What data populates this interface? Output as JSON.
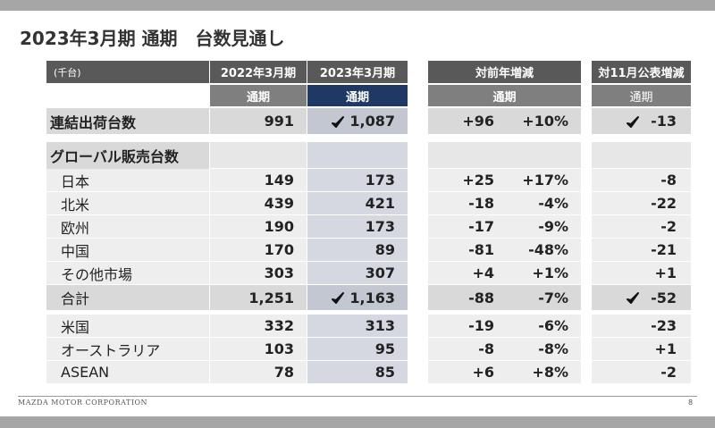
{
  "title": "2023年3月期 通期　台数見通し",
  "table": {
    "header": {
      "unit": "(千台)",
      "col_2022": "2022年3月期",
      "col_2023": "2023年3月期",
      "col_diff": "対前年増減",
      "col_nov": "対11月公表増減"
    },
    "subheader": {
      "col_2022": "通期",
      "col_2023": "通期",
      "col_diff": "通期",
      "col_nov": "通期"
    },
    "section_header": "グローバル販売台数",
    "rows": [
      {
        "label": "連結出荷台数",
        "v2022": "991",
        "v2023": "1,087",
        "diff": "+96",
        "pct": "+10%",
        "diff_nov": "-13",
        "checked": true
      },
      {
        "label": "日本",
        "v2022": "149",
        "v2023": "173",
        "diff": "+25",
        "pct": "+17%",
        "diff_nov": "-8"
      },
      {
        "label": "北米",
        "v2022": "439",
        "v2023": "421",
        "diff": "-18",
        "pct": "-4%",
        "diff_nov": "-22"
      },
      {
        "label": "欧州",
        "v2022": "190",
        "v2023": "173",
        "diff": "-17",
        "pct": "-9%",
        "diff_nov": "-2"
      },
      {
        "label": "中国",
        "v2022": "170",
        "v2023": "89",
        "diff": "-81",
        "pct": "-48%",
        "diff_nov": "-21"
      },
      {
        "label": "その他市場",
        "v2022": "303",
        "v2023": "307",
        "diff": "+4",
        "pct": "+1%",
        "diff_nov": "+1"
      },
      {
        "label": "合計",
        "v2022": "1,251",
        "v2023": "1,163",
        "diff": "-88",
        "pct": "-7%",
        "diff_nov": "-52",
        "checked": true
      },
      {
        "label": "米国",
        "v2022": "332",
        "v2023": "313",
        "diff": "-19",
        "pct": "-6%",
        "diff_nov": "-23"
      },
      {
        "label": "オーストラリア",
        "v2022": "103",
        "v2023": "95",
        "diff": "-8",
        "pct": "-8%",
        "diff_nov": "+1"
      },
      {
        "label": "ASEAN",
        "v2022": "78",
        "v2023": "85",
        "diff": "+6",
        "pct": "+8%",
        "diff_nov": "-2"
      }
    ]
  },
  "footer": {
    "company": "MAZDA MOTOR CORPORATION",
    "page": "8"
  }
}
